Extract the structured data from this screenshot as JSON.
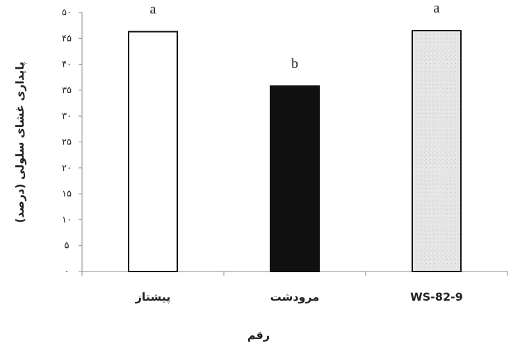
{
  "chart_data": {
    "type": "bar",
    "title": "",
    "xlabel": "رقم",
    "ylabel": "پایداری غشای سلولی (درصد)",
    "ylim": [
      0,
      50
    ],
    "yticks": [
      0,
      5,
      10,
      15,
      20,
      25,
      30,
      35,
      40,
      45,
      50
    ],
    "ytick_labels": [
      "۰",
      "۵",
      "۱۰",
      "۱۵",
      "۲۰",
      "۲۵",
      "۳۰",
      "۳۵",
      "۴۰",
      "۴۵",
      "۵۰"
    ],
    "categories": [
      "پیشتاز",
      "مرودشت",
      "WS-82-9"
    ],
    "values": [
      46.3,
      35.8,
      46.5
    ],
    "significance_letters": [
      "a",
      "b",
      "a"
    ],
    "bar_fills": [
      "#ffffff",
      "#111111",
      "#e4e4e4"
    ],
    "grid": false,
    "legend": "none"
  }
}
